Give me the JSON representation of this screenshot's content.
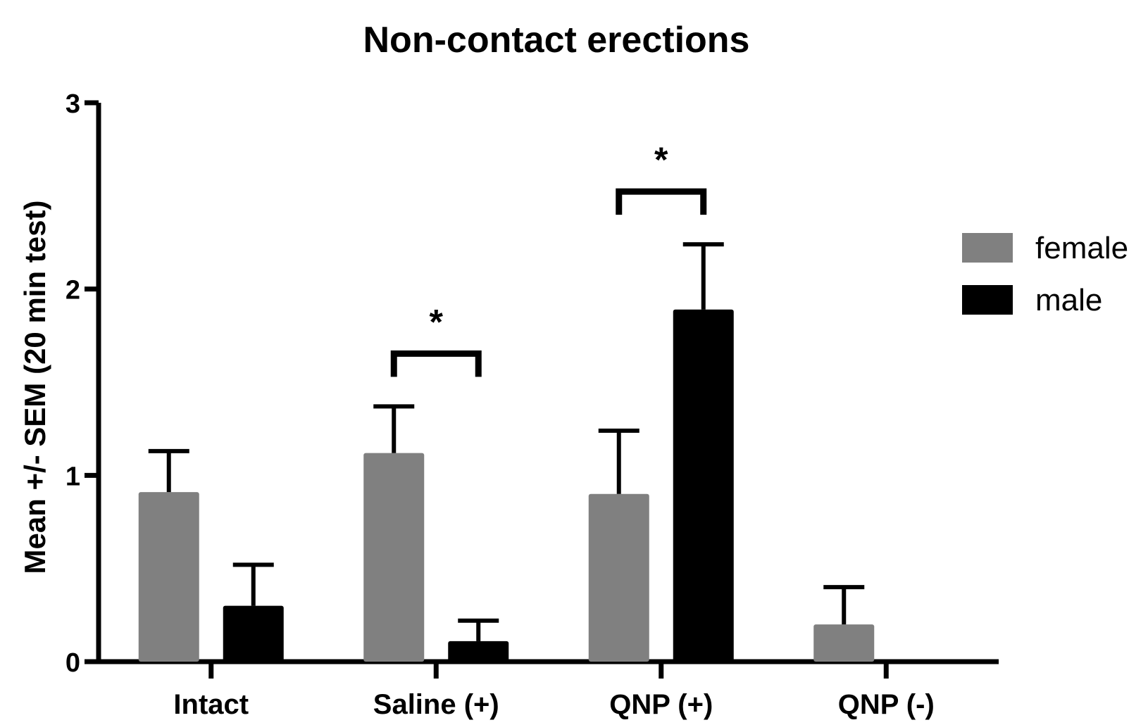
{
  "chart_data": {
    "type": "bar",
    "title": "Non-contact erections",
    "xlabel": "",
    "ylabel": "Mean +/- SEM (20 min test)",
    "ylim": [
      0,
      3
    ],
    "yticks": [
      "0",
      "1",
      "2",
      "3"
    ],
    "categories": [
      "Intact",
      "Saline (+)",
      "QNP (+)",
      "QNP (-)"
    ],
    "series": [
      {
        "name": "female",
        "color": "#808080",
        "values": [
          0.91,
          1.12,
          0.9,
          0.2
        ],
        "errors": [
          0.22,
          0.25,
          0.34,
          0.2
        ]
      },
      {
        "name": "male",
        "color": "#000000",
        "values": [
          0.3,
          0.11,
          1.89,
          0.0
        ],
        "errors": [
          0.22,
          0.11,
          0.35,
          0.0
        ]
      }
    ],
    "legend_position": "right",
    "significance": [
      {
        "category": "Saline (+)",
        "label": "*"
      },
      {
        "category": "QNP (+)",
        "label": "*"
      }
    ],
    "grid": false
  }
}
